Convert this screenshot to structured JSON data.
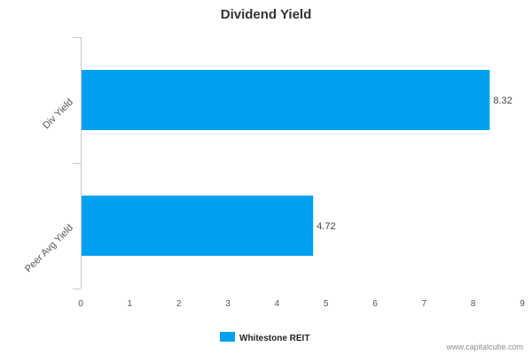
{
  "chart_data": {
    "type": "bar",
    "orientation": "horizontal",
    "title": "Dividend Yield",
    "categories": [
      "Div Yield",
      "Peer Avg Yield"
    ],
    "series": [
      {
        "name": "Whitestone REIT",
        "values": [
          8.32,
          4.72
        ],
        "labels": [
          "8.32",
          "4.72"
        ],
        "color": "#00a0f0"
      }
    ],
    "xlim": [
      0,
      9
    ],
    "xticks": [
      "0",
      "1",
      "2",
      "3",
      "4",
      "5",
      "6",
      "7",
      "8",
      "9"
    ],
    "grid": false,
    "legend_position": "bottom-center"
  },
  "credit": "www.capitalcube.com"
}
